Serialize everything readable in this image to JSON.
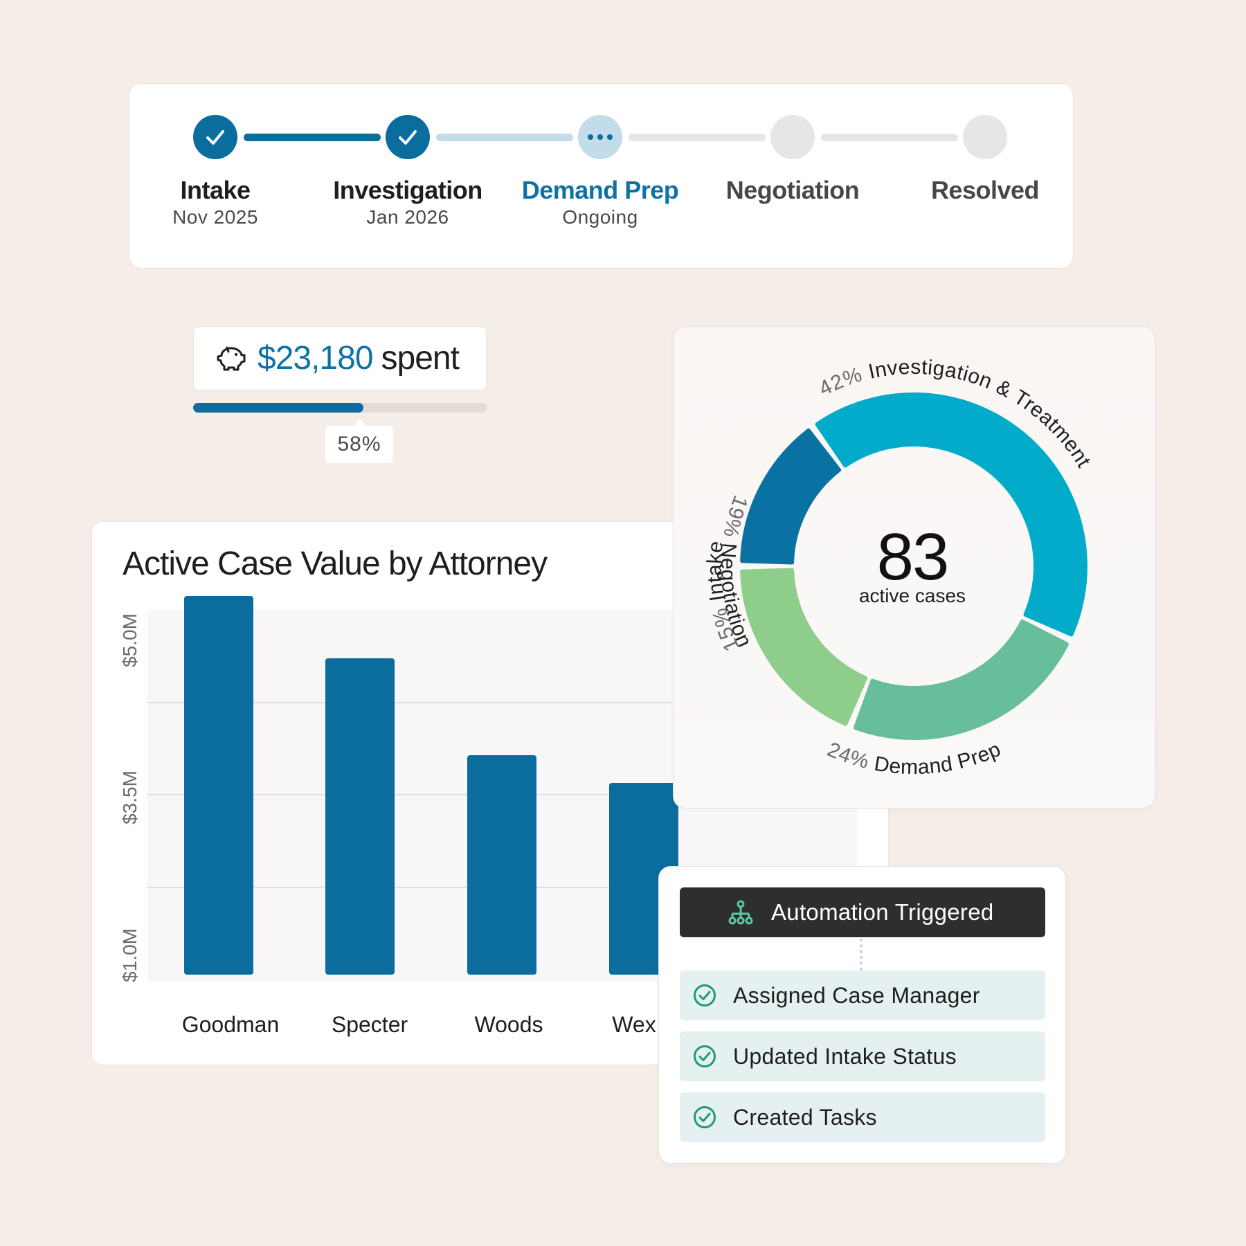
{
  "stepper": {
    "steps": [
      {
        "name": "Intake",
        "sub": "Nov 2025",
        "state": "done"
      },
      {
        "name": "Investigation",
        "sub": "Jan 2026",
        "state": "done"
      },
      {
        "name": "Demand Prep",
        "sub": "Ongoing",
        "state": "current"
      },
      {
        "name": "Negotiation",
        "sub": "",
        "state": "todo"
      },
      {
        "name": "Resolved",
        "sub": "",
        "state": "todo"
      }
    ],
    "icons": {
      "done": "check-icon",
      "current": "more-dots-icon"
    },
    "colors": {
      "done": "#0a6d9e",
      "current": "#c3dcea",
      "todo": "#e7e5e6"
    }
  },
  "spent": {
    "icon": "piggy-bank-icon",
    "amount": "$23,180",
    "word": "spent",
    "percent_label": "58%",
    "percent": 58
  },
  "chart_data": {
    "type": "bar",
    "title": "Active Case Value by Attorney",
    "categories": [
      "Goodman",
      "Specter",
      "Woods",
      "Wex"
    ],
    "values": [
      5.6,
      4.7,
      3.3,
      2.9
    ],
    "y_unit": "$M",
    "ytick_labels": [
      "$1.0M",
      "$3.5M",
      "$5.0M"
    ],
    "bar_color": "#0a6d9e",
    "grid": true
  },
  "donut": {
    "center_value": "83",
    "center_label": "active cases",
    "segments": [
      {
        "label": "Investigation & Treatment",
        "pct_label": "42%",
        "pct": 42,
        "color": "#03abcb"
      },
      {
        "label": "Demand Prep",
        "pct_label": "24%",
        "pct": 24,
        "color": "#66be9a"
      },
      {
        "label": "Negotiation",
        "pct_label": "19%",
        "pct": 19,
        "color": "#8ecd8a"
      },
      {
        "label": "Intake",
        "pct_label": "15%",
        "pct": 15,
        "color": "#0a72a2"
      }
    ]
  },
  "automation": {
    "header": "Automation Triggered",
    "header_icon": "workflow-icon",
    "items": [
      {
        "label": "Assigned Case Manager"
      },
      {
        "label": "Updated Intake Status"
      },
      {
        "label": "Created Tasks"
      }
    ],
    "item_icon": "check-circle-icon",
    "accent": "#1f9a76"
  }
}
